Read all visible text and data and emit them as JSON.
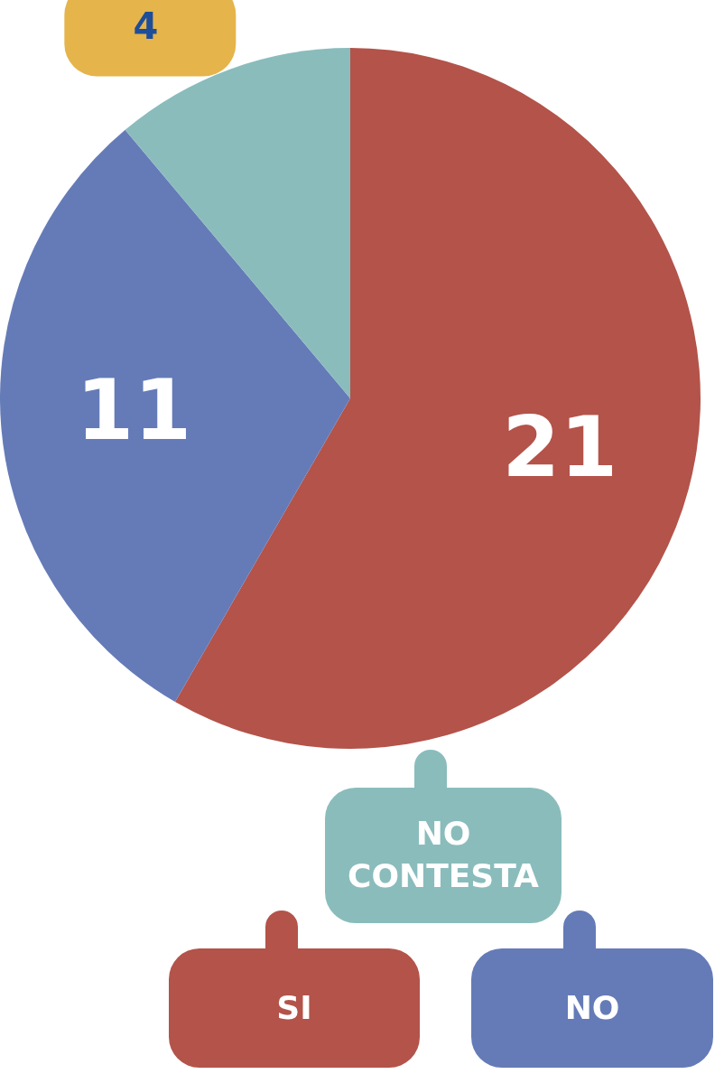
{
  "chart_data": {
    "type": "pie",
    "categories": [
      "SI",
      "NO",
      "NO CONTESTA"
    ],
    "values": [
      21,
      11,
      4
    ],
    "colors": [
      "#b3534a",
      "#657bb8",
      "#8abcbc"
    ],
    "data_labels": true,
    "legend": "bottom"
  }
}
